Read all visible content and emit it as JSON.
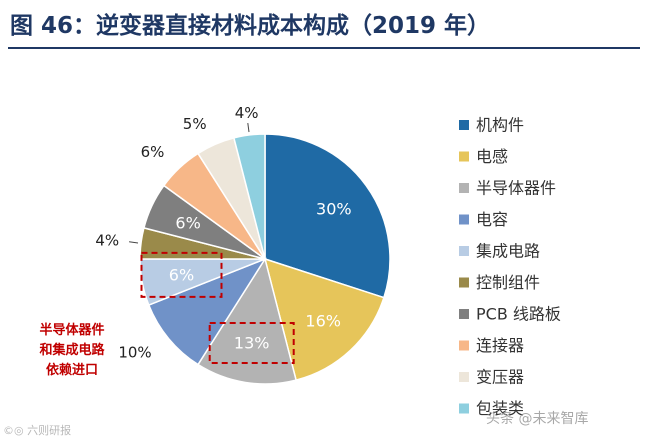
{
  "figure": {
    "title": "图 46：逆变器直接材料成本构成（2019 年）"
  },
  "chart_data": {
    "type": "pie",
    "title": "逆变器直接材料成本构成（2019 年）",
    "unit": "%",
    "start": "12 o'clock, clockwise",
    "legend_position": "right",
    "slices": [
      {
        "name": "机构件",
        "value": 30,
        "label": "30%",
        "color": "#1f6aa5",
        "label_placement": "inside"
      },
      {
        "name": "电感",
        "value": 16,
        "label": "16%",
        "color": "#e6c55a",
        "label_placement": "inside"
      },
      {
        "name": "半导体器件",
        "value": 13,
        "label": "13%",
        "color": "#b3b3b3",
        "label_placement": "inside"
      },
      {
        "name": "电容",
        "value": 10,
        "label": "10%",
        "color": "#7092c8",
        "label_placement": "outside"
      },
      {
        "name": "集成电路",
        "value": 6,
        "label": "6%",
        "color": "#b8cce4",
        "label_placement": "inside"
      },
      {
        "name": "控制组件",
        "value": 4,
        "label": "4%",
        "color": "#9a8a4a",
        "label_placement": "outside"
      },
      {
        "name": "PCB 线路板",
        "value": 6,
        "label": "6%",
        "color": "#7f7f7f",
        "label_placement": "inside"
      },
      {
        "name": "连接器",
        "value": 6,
        "label": "6%",
        "color": "#f7b788",
        "label_placement": "outside"
      },
      {
        "name": "变压器",
        "value": 5,
        "label": "5%",
        "color": "#ede6da",
        "label_placement": "outside"
      },
      {
        "name": "包装类",
        "value": 4,
        "label": "4%",
        "color": "#8ecfdf",
        "label_placement": "outside"
      }
    ],
    "highlighted": [
      "半导体器件",
      "集成电路"
    ],
    "annotation": [
      "半导体器件",
      "和集成电路",
      "依赖进口"
    ],
    "annotation_color": "#c00000"
  },
  "watermarks": {
    "left": "©◎ 六则研报",
    "right": "头条 @未来智库"
  }
}
